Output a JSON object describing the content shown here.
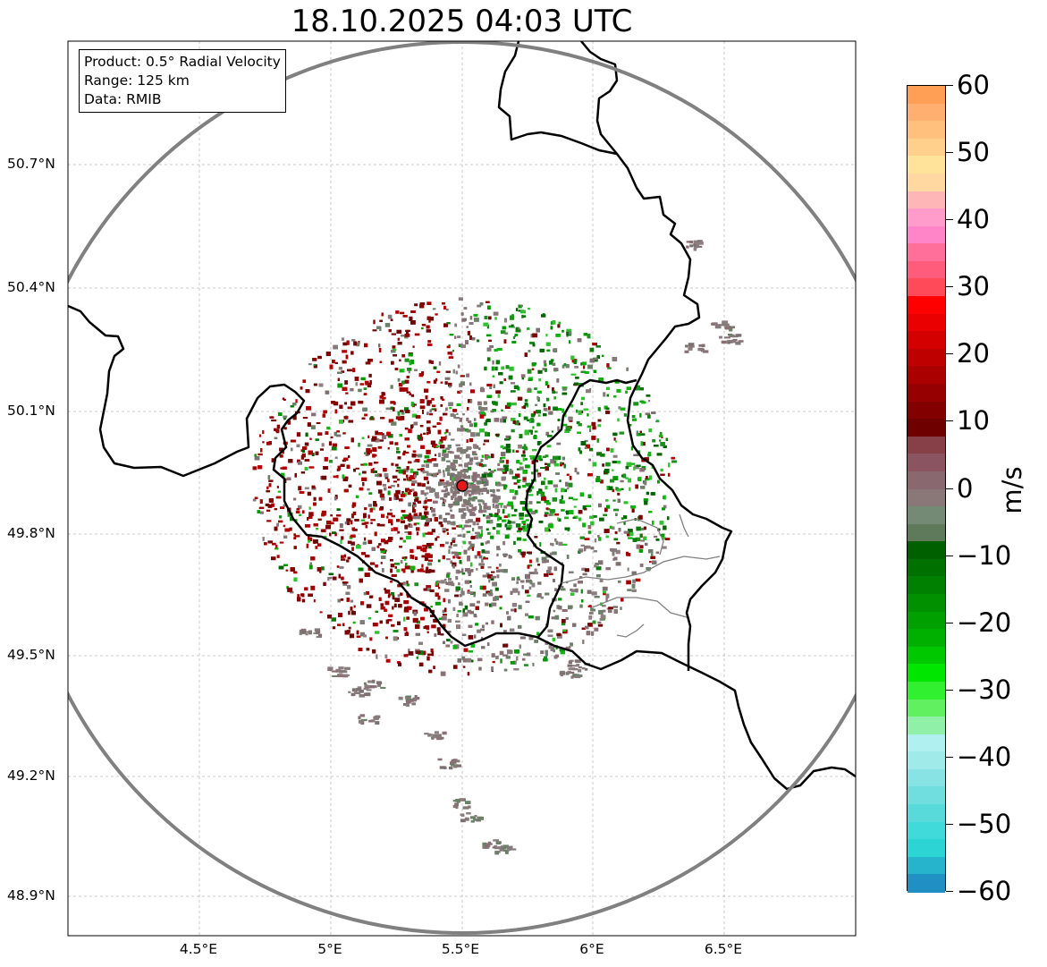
{
  "title": "18.10.2025 04:03 UTC",
  "info": {
    "product": "Product: 0.5° Radial Velocity",
    "range": "Range: 125 km",
    "source": "Data: RMIB"
  },
  "lat_labels": [
    "50.7°N",
    "50.4°N",
    "50.1°N",
    "49.8°N",
    "49.5°N",
    "49.2°N",
    "48.9°N"
  ],
  "lon_labels": [
    "4.5°E",
    "5°E",
    "5.5°E",
    "6°E",
    "6.5°E"
  ],
  "colorbar": {
    "unit": "m/s",
    "labels": [
      "60",
      "50",
      "40",
      "30",
      "20",
      "10",
      "0",
      "−10",
      "−20",
      "−30",
      "−40",
      "−50",
      "−60"
    ],
    "min": -60,
    "max": 60
  },
  "chart_data": {
    "type": "radar_map",
    "product": "0.5° Radial Velocity",
    "range_km": 125,
    "radar_site": {
      "lon": 5.505,
      "lat": 49.914
    },
    "extent": {
      "lon": [
        4.0,
        7.0
      ],
      "lat": [
        48.8,
        50.95
      ]
    },
    "lat_ticks": [
      50.7,
      50.4,
      50.1,
      49.8,
      49.5,
      49.2,
      48.9
    ],
    "lon_ticks": [
      4.5,
      5.0,
      5.5,
      6.0,
      6.5
    ],
    "velocity_range": [
      -60,
      60
    ]
  },
  "colors": {
    "range_ring": "#808080",
    "site_marker": "#e31a1c",
    "outbound": "#8b0000",
    "inbound": "#0a9a0a",
    "near_zero": "#8a7a7a"
  }
}
